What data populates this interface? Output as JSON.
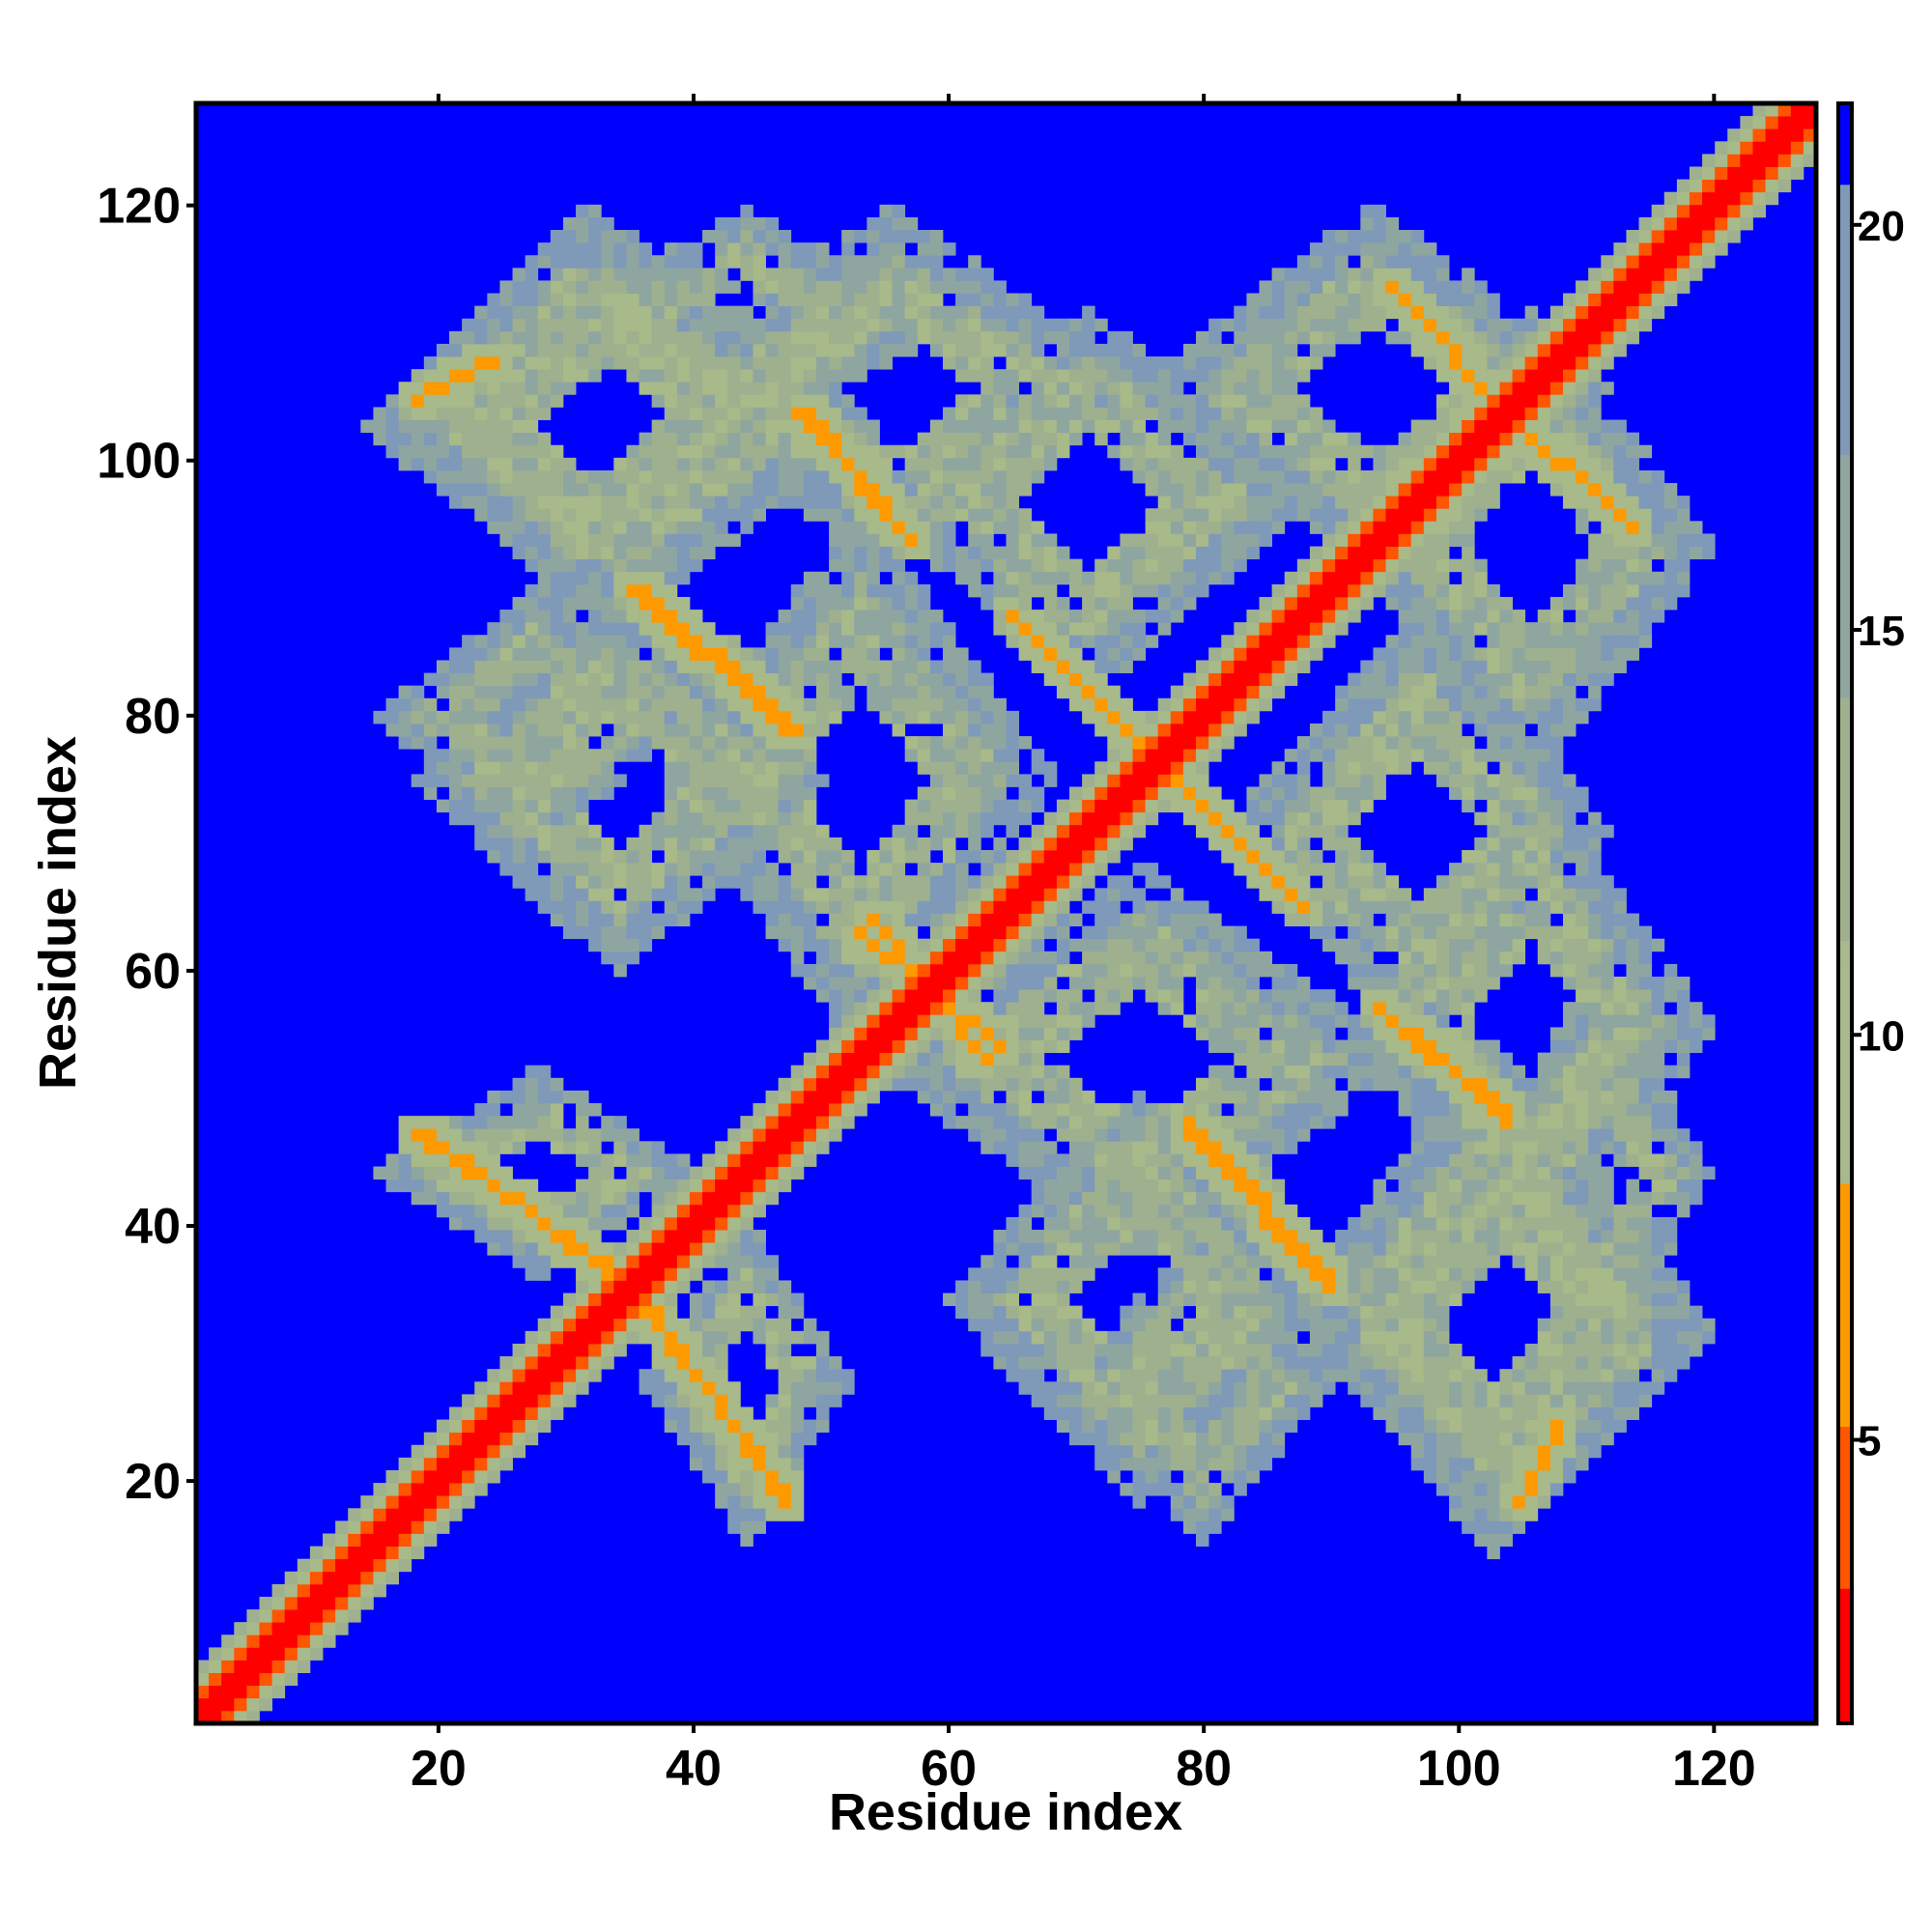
{
  "chart_data": {
    "type": "heatmap",
    "title": "",
    "xlabel": "Residue index",
    "ylabel": "Residue index",
    "xlim": [
      1,
      128
    ],
    "ylim": [
      1,
      128
    ],
    "n_residues": 128,
    "x_ticks": [
      20,
      40,
      60,
      80,
      100,
      120
    ],
    "y_ticks": [
      20,
      40,
      60,
      80,
      100,
      120
    ],
    "x_tick_labels": [
      "20",
      "40",
      "60",
      "80",
      "100",
      "120"
    ],
    "y_tick_labels": [
      "20",
      "40",
      "60",
      "80",
      "100",
      "120"
    ],
    "colorbar": {
      "min": 1.5,
      "max": 21.5,
      "ticks": [
        5,
        10,
        15,
        20
      ],
      "tick_labels": [
        "5",
        "10",
        "15",
        "20"
      ],
      "colors": {
        "contact": "#ff0000",
        "close": "#ff9900",
        "mid": "#a8b98a",
        "far": "#7f99b8",
        "background": "#0000ff"
      }
    },
    "description_values": {
      "diagonal_distance": 2,
      "near_diagonal_distance": 6,
      "beta_contact_distance": 7,
      "cross_beta_diagonals": [
        {
          "from": [
            18,
            47
          ],
          "to": [
            34,
            36
          ]
        },
        {
          "from": [
            36,
            33
          ],
          "to": [
            47,
            19
          ]
        },
        {
          "from": [
            35,
            90
          ],
          "to": [
            47,
            79
          ]
        },
        {
          "from": [
            49,
            104
          ],
          "to": [
            57,
            94
          ]
        },
        {
          "from": [
            54,
            64
          ],
          "to": [
            63,
            53
          ]
        },
        {
          "from": [
            66,
            87
          ],
          "to": [
            76,
            77
          ]
        },
        {
          "from": [
            77,
            76
          ],
          "to": [
            88,
            65
          ]
        },
        {
          "from": [
            79,
            48
          ],
          "to": [
            90,
            36
          ]
        },
        {
          "from": [
            96,
            113
          ],
          "to": [
            104,
            104
          ]
        },
        {
          "from": [
            104,
            104
          ],
          "to": [
            114,
            95
          ]
        },
        {
          "from": [
            94,
            57
          ],
          "to": [
            104,
            48
          ]
        },
        {
          "from": [
            18,
            105
          ],
          "to": [
            24,
            108
          ]
        }
      ],
      "domain_blocks": [
        {
          "x": [
            15,
            48
          ],
          "y": [
            88,
            120
          ]
        },
        {
          "x": [
            36,
            75
          ],
          "y": [
            92,
            120
          ]
        },
        {
          "x": [
            75,
            112
          ],
          "y": [
            92,
            120
          ]
        },
        {
          "x": [
            15,
            40
          ],
          "y": [
            70,
            90
          ]
        },
        {
          "x": [
            38,
            68
          ],
          "y": [
            54,
            96
          ]
        },
        {
          "x": [
            82,
            112
          ],
          "y": [
            54,
            88
          ]
        },
        {
          "x": [
            15,
            40
          ],
          "y": [
            36,
            52
          ]
        },
        {
          "x": [
            60,
            90
          ],
          "y": [
            18,
            50
          ]
        },
        {
          "x": [
            88,
            118
          ],
          "y": [
            14,
            54
          ]
        },
        {
          "x": [
            102,
            120
          ],
          "y": [
            28,
            60
          ]
        }
      ]
    }
  }
}
